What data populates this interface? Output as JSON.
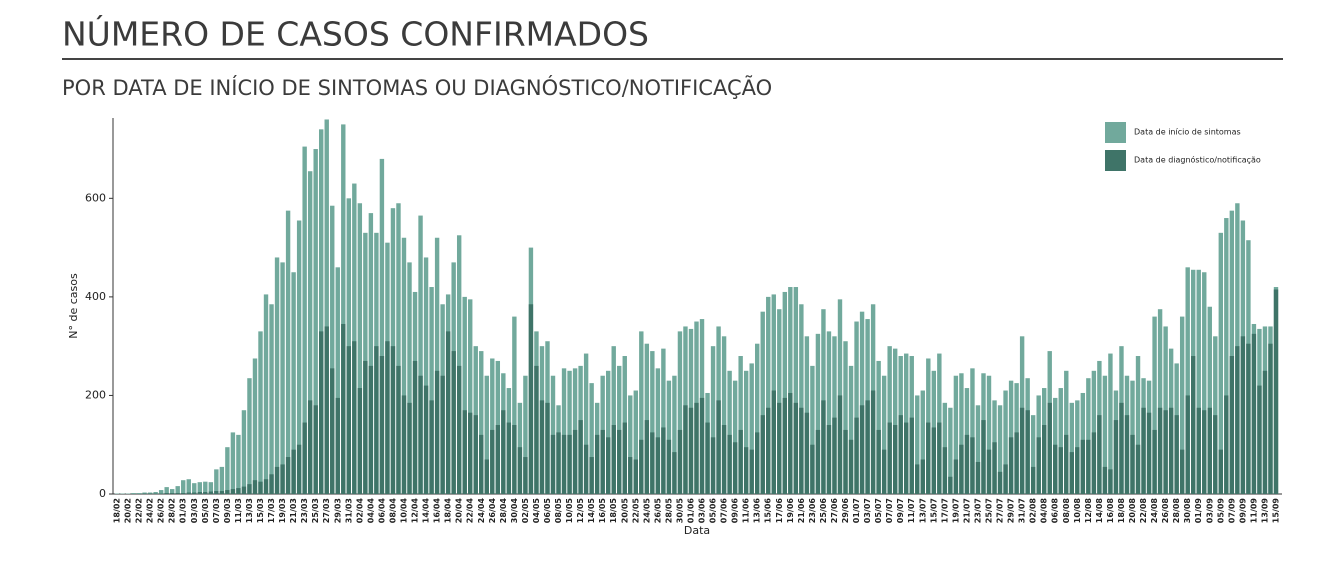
{
  "chart_data": {
    "type": "bar",
    "title": "NÚMERO DE CASOS CONFIRMADOS",
    "subtitle": "POR DATA DE INÍCIO DE SINTOMAS OU DIAGNÓSTICO/NOTIFICAÇÃO",
    "x_label": "Data",
    "y_label": "N° de casos",
    "ylim": [
      0,
      763
    ],
    "yticks": [
      0,
      200,
      400,
      600
    ],
    "legend_position": "top-right",
    "categories": [
      "18/02",
      null,
      "20/02",
      null,
      "22/02",
      null,
      "24/02",
      null,
      "26/02",
      null,
      "28/02",
      null,
      "01/03",
      null,
      "03/03",
      null,
      "05/03",
      null,
      "07/03",
      null,
      "09/03",
      null,
      "11/03",
      null,
      "13/03",
      null,
      "15/03",
      null,
      "17/03",
      null,
      "19/03",
      null,
      "21/03",
      null,
      "23/03",
      null,
      "25/03",
      null,
      "27/03",
      null,
      "29/03",
      null,
      "31/03",
      null,
      "02/04",
      null,
      "04/04",
      null,
      "06/04",
      null,
      "08/04",
      null,
      "10/04",
      null,
      "12/04",
      null,
      "14/04",
      null,
      "16/04",
      null,
      "18/04",
      null,
      "20/04",
      null,
      "22/04",
      null,
      "24/04",
      null,
      "26/04",
      null,
      "28/04",
      null,
      "30/04",
      null,
      "02/05",
      null,
      "04/05",
      null,
      "06/05",
      null,
      "08/05",
      null,
      "10/05",
      null,
      "12/05",
      null,
      "14/05",
      null,
      "16/05",
      null,
      "18/05",
      null,
      "20/05",
      null,
      "22/05",
      null,
      "24/05",
      null,
      "26/05",
      null,
      "28/05",
      null,
      "30/05",
      null,
      "01/06",
      null,
      "03/06",
      null,
      "05/06",
      null,
      "07/06",
      null,
      "09/06",
      null,
      "11/06",
      null,
      "13/06",
      null,
      "15/06",
      null,
      "17/06",
      null,
      "19/06",
      null,
      "21/06",
      null,
      "23/06",
      null,
      "25/06",
      null,
      "27/06",
      null,
      "29/06",
      null,
      "01/07",
      null,
      "03/07",
      null,
      "05/07",
      null,
      "07/07",
      null,
      "09/07",
      null,
      "11/07",
      null,
      "13/07",
      null,
      "15/07",
      null,
      "17/07",
      null,
      "19/07",
      null,
      "21/07",
      null,
      "23/07",
      null,
      "25/07",
      null,
      "27/07",
      null,
      "29/07",
      null,
      "31/07",
      null,
      "02/08",
      null,
      "04/08",
      null,
      "06/08",
      null,
      "08/08",
      null,
      "10/08",
      null,
      "12/08",
      null,
      "14/08",
      null,
      "16/08",
      null,
      "18/08",
      null,
      "20/08",
      null,
      "22/08",
      null,
      "24/08",
      null,
      "26/08",
      null,
      "28/08",
      null,
      "30/08",
      null,
      "01/09",
      null,
      "03/09",
      null,
      "05/09",
      null,
      "07/09",
      null,
      "09/09",
      null,
      "11/09",
      null,
      "13/09",
      null,
      "15/09"
    ],
    "series": [
      {
        "name": "Data de início de sintomas",
        "color": "#71a99c",
        "values": [
          1,
          1,
          1,
          2,
          2,
          3,
          3,
          4,
          8,
          14,
          10,
          16,
          28,
          30,
          22,
          24,
          25,
          24,
          50,
          55,
          95,
          125,
          120,
          170,
          235,
          275,
          330,
          405,
          385,
          480,
          470,
          575,
          450,
          555,
          705,
          655,
          700,
          740,
          760,
          585,
          460,
          750,
          600,
          630,
          590,
          530,
          570,
          530,
          680,
          510,
          580,
          590,
          520,
          470,
          410,
          565,
          480,
          420,
          520,
          385,
          405,
          470,
          525,
          400,
          395,
          300,
          290,
          240,
          275,
          270,
          245,
          215,
          360,
          185,
          240,
          500,
          330,
          300,
          310,
          240,
          180,
          255,
          250,
          255,
          260,
          285,
          225,
          185,
          240,
          250,
          300,
          260,
          280,
          200,
          210,
          330,
          305,
          290,
          255,
          295,
          230,
          240,
          330,
          340,
          335,
          350,
          355,
          205,
          300,
          340,
          320,
          250,
          230,
          280,
          250,
          265,
          305,
          370,
          400,
          405,
          375,
          410,
          420,
          420,
          385,
          320,
          260,
          325,
          375,
          330,
          320,
          395,
          310,
          260,
          350,
          370,
          355,
          385,
          270,
          240,
          300,
          295,
          280,
          285,
          280,
          200,
          210,
          275,
          250,
          285,
          185,
          175,
          240,
          245,
          215,
          255,
          180,
          245,
          240,
          190,
          180,
          210,
          230,
          225,
          320,
          235,
          160,
          200,
          215,
          290,
          195,
          215,
          250,
          185,
          190,
          205,
          235,
          250,
          270,
          240,
          285,
          210,
          300,
          240,
          230,
          280,
          235,
          230,
          360,
          375,
          340,
          295,
          265,
          360,
          460,
          455,
          455,
          450,
          380,
          320,
          530,
          560,
          575,
          590,
          555,
          515,
          345,
          335,
          340,
          340,
          420
        ]
      },
      {
        "name": "Data de diagnóstico/notificação",
        "color": "#3f7468",
        "values": [
          0,
          0,
          0,
          0,
          0,
          1,
          1,
          1,
          1,
          2,
          2,
          2,
          2,
          3,
          3,
          4,
          4,
          5,
          6,
          6,
          8,
          10,
          12,
          15,
          20,
          28,
          25,
          30,
          40,
          55,
          60,
          75,
          90,
          100,
          145,
          190,
          180,
          330,
          340,
          255,
          195,
          345,
          300,
          310,
          215,
          270,
          260,
          300,
          280,
          310,
          300,
          260,
          200,
          185,
          270,
          240,
          220,
          190,
          250,
          240,
          330,
          290,
          260,
          170,
          165,
          160,
          120,
          70,
          130,
          140,
          170,
          145,
          140,
          95,
          75,
          385,
          260,
          190,
          185,
          120,
          125,
          120,
          120,
          130,
          150,
          100,
          75,
          120,
          130,
          115,
          140,
          130,
          145,
          75,
          70,
          110,
          150,
          125,
          115,
          135,
          110,
          85,
          130,
          180,
          175,
          185,
          195,
          145,
          115,
          190,
          140,
          120,
          105,
          130,
          95,
          90,
          125,
          160,
          175,
          210,
          185,
          195,
          205,
          185,
          175,
          165,
          100,
          130,
          190,
          140,
          155,
          200,
          130,
          110,
          155,
          180,
          190,
          210,
          130,
          90,
          145,
          140,
          160,
          145,
          155,
          60,
          70,
          145,
          135,
          145,
          95,
          35,
          70,
          100,
          120,
          115,
          65,
          150,
          90,
          105,
          45,
          60,
          115,
          125,
          175,
          170,
          55,
          115,
          140,
          185,
          100,
          95,
          120,
          85,
          95,
          110,
          110,
          125,
          160,
          55,
          50,
          150,
          185,
          160,
          120,
          100,
          175,
          165,
          130,
          175,
          170,
          175,
          160,
          90,
          200,
          280,
          175,
          170,
          175,
          160,
          90,
          200,
          280,
          300,
          320,
          305,
          325,
          220,
          250,
          305,
          415
        ]
      }
    ]
  }
}
